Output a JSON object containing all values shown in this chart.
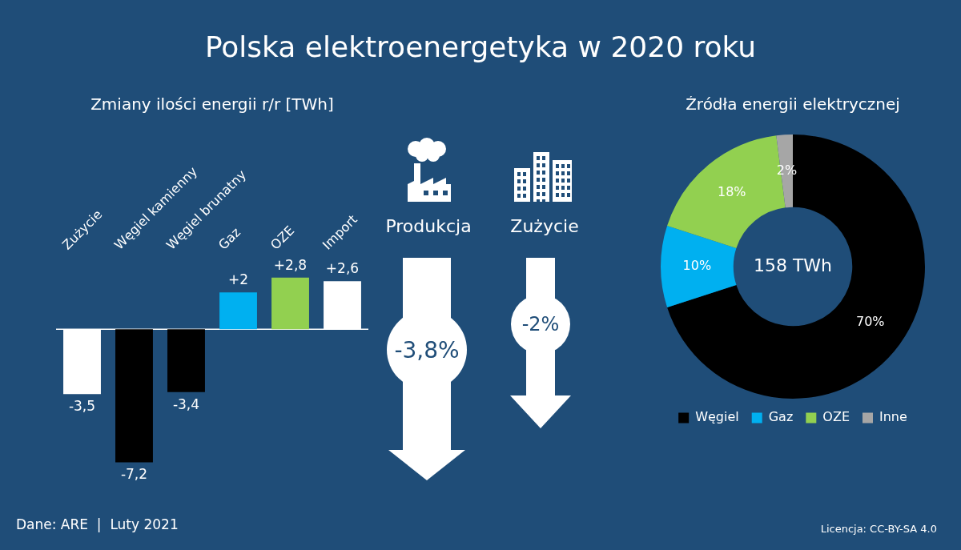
{
  "chart_data": [
    {
      "type": "bar",
      "title": "Zmiany ilości energii r/r [TWh]",
      "categories": [
        "Zużycie",
        "Węgiel kamienny",
        "Węgiel brunatny",
        "Gaz",
        "OZE",
        "Import"
      ],
      "values": [
        -3.5,
        -7.2,
        -3.4,
        2,
        2.8,
        2.6
      ],
      "colors": [
        "#ffffff",
        "#000000",
        "#000000",
        "#00b0f0",
        "#92d050",
        "#ffffff"
      ],
      "value_labels": [
        "-3,5",
        "-7,2",
        "-3,4",
        "+2",
        "+2,8",
        "+2,6"
      ]
    },
    {
      "type": "other",
      "title": "Polska elektroenergetyka w 2020 roku",
      "annotations": [
        "Produkcja",
        "-3,8%",
        "Zużycie",
        "-2%",
        "Dane: ARE  |  Luty 2021",
        "Licencja: CC-BY-SA 4.0"
      ]
    },
    {
      "type": "donut",
      "title": "Źródła energii elektrycznej",
      "categories": [
        "Węgiel",
        "Gaz",
        "OZE",
        "Inne"
      ],
      "values": [
        70,
        10,
        18,
        2
      ],
      "colors": [
        "#000000",
        "#00b0f0",
        "#92d050",
        "#a6a6a6"
      ],
      "value_labels": [
        "70%",
        "10%",
        "18%",
        "2%"
      ],
      "legend": "bottom",
      "annotations": [
        "158 TWh"
      ]
    }
  ]
}
